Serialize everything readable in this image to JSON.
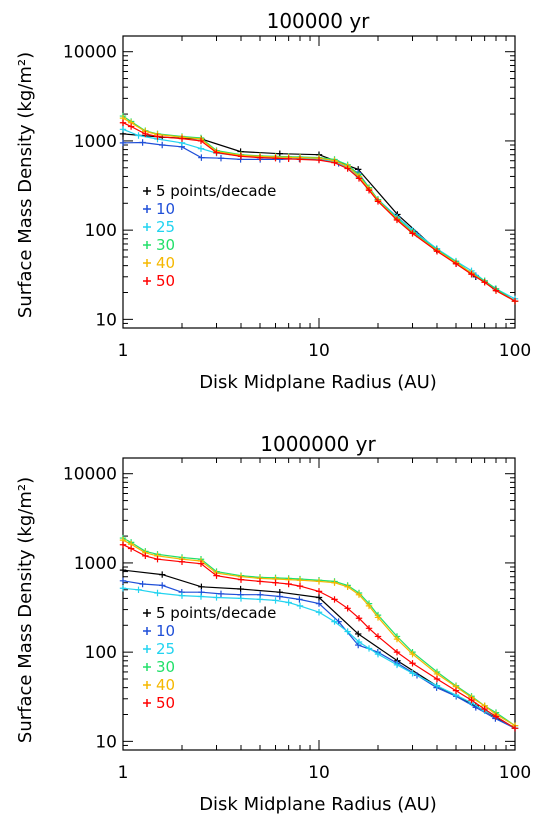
{
  "chart_data": [
    {
      "type": "line",
      "title": "100000 yr",
      "xlabel": "Disk Midplane Radius (AU)",
      "ylabel": "Surface Mass Density (kg/m²)",
      "xscale": "log",
      "yscale": "log",
      "xlim": [
        1,
        100
      ],
      "ylim": [
        8,
        15000
      ],
      "xticks": [
        "1",
        "10",
        "100"
      ],
      "yticks": [
        "10",
        "100",
        "1000",
        "10000"
      ],
      "legend_position": "left-middle",
      "series": [
        {
          "name": "5 points/decade",
          "color": "#000000",
          "x": [
            1,
            1.585,
            2.512,
            3.981,
            6.31,
            10,
            15.85,
            25.12,
            39.81,
            63.1,
            100
          ],
          "y": [
            1200,
            1100,
            1050,
            760,
            720,
            700,
            480,
            150,
            60,
            30,
            16
          ]
        },
        {
          "name": "10",
          "color": "#1f4fd8",
          "x": [
            1,
            1.259,
            1.585,
            1.995,
            2.512,
            3.162,
            3.981,
            5.012,
            6.31,
            7.943,
            10,
            12.59,
            15.85,
            19.95,
            25.12,
            31.62,
            39.81,
            50.12,
            63.1,
            79.43,
            100
          ],
          "y": [
            950,
            960,
            900,
            860,
            650,
            640,
            620,
            620,
            620,
            630,
            620,
            560,
            440,
            220,
            140,
            90,
            62,
            42,
            31,
            22,
            16
          ]
        },
        {
          "name": "25",
          "color": "#22d3f0",
          "x": [
            1,
            1.2,
            1.5,
            2,
            2.5,
            3,
            4,
            5,
            6,
            7,
            8,
            10,
            12,
            14,
            16,
            18,
            20,
            25,
            30,
            40,
            50,
            60,
            70,
            80,
            100
          ],
          "y": [
            1350,
            1150,
            1050,
            950,
            820,
            730,
            680,
            660,
            650,
            650,
            645,
            630,
            590,
            500,
            390,
            290,
            220,
            140,
            100,
            62,
            45,
            35,
            27,
            22,
            17
          ]
        },
        {
          "name": "30",
          "color": "#22e06a",
          "x": [
            1,
            1.1,
            1.3,
            1.5,
            2,
            2.5,
            3,
            4,
            5,
            6,
            7,
            8,
            10,
            12,
            14,
            16,
            18,
            20,
            25,
            30,
            40,
            50,
            60,
            70,
            80,
            100
          ],
          "y": [
            1900,
            1650,
            1300,
            1200,
            1120,
            1080,
            780,
            700,
            680,
            670,
            665,
            660,
            650,
            620,
            540,
            420,
            300,
            220,
            135,
            95,
            60,
            44,
            33,
            27,
            22,
            16
          ]
        },
        {
          "name": "40",
          "color": "#f5b800",
          "x": [
            1,
            1.1,
            1.3,
            1.5,
            2,
            2.5,
            3,
            4,
            5,
            6,
            7,
            8,
            10,
            12,
            14,
            16,
            18,
            20,
            25,
            30,
            40,
            50,
            60,
            70,
            80,
            100
          ],
          "y": [
            1800,
            1600,
            1280,
            1180,
            1100,
            1050,
            760,
            690,
            670,
            660,
            655,
            650,
            640,
            600,
            520,
            400,
            290,
            215,
            132,
            93,
            59,
            43,
            33,
            26,
            21,
            16
          ]
        },
        {
          "name": "50",
          "color": "#ff0000",
          "x": [
            1,
            1.1,
            1.3,
            1.5,
            2,
            2.5,
            3,
            4,
            5,
            6,
            7,
            8,
            10,
            12,
            14,
            16,
            18,
            20,
            25,
            30,
            40,
            50,
            60,
            70,
            80,
            100
          ],
          "y": [
            1600,
            1450,
            1200,
            1120,
            1060,
            1000,
            740,
            670,
            650,
            640,
            630,
            620,
            610,
            570,
            490,
            380,
            280,
            210,
            130,
            92,
            58,
            42,
            32,
            26,
            21,
            16
          ]
        }
      ]
    },
    {
      "type": "line",
      "title": "1000000 yr",
      "xlabel": "Disk Midplane Radius (AU)",
      "ylabel": "Surface Mass Density (kg/m²)",
      "xscale": "log",
      "yscale": "log",
      "xlim": [
        1,
        100
      ],
      "ylim": [
        8,
        15000
      ],
      "xticks": [
        "1",
        "10",
        "100"
      ],
      "yticks": [
        "10",
        "100",
        "1000",
        "10000"
      ],
      "legend_position": "left-middle",
      "series": [
        {
          "name": "5 points/decade",
          "color": "#000000",
          "x": [
            1,
            1.585,
            2.512,
            3.981,
            6.31,
            10,
            15.85,
            25.12,
            39.81,
            63.1,
            100
          ],
          "y": [
            830,
            740,
            540,
            510,
            470,
            410,
            160,
            80,
            42,
            25,
            14
          ]
        },
        {
          "name": "10",
          "color": "#1f4fd8",
          "x": [
            1,
            1.259,
            1.585,
            1.995,
            2.512,
            3.162,
            3.981,
            5.012,
            6.31,
            7.943,
            10,
            12.59,
            15.85,
            19.95,
            25.12,
            31.62,
            39.81,
            50.12,
            63.1,
            79.43,
            100
          ],
          "y": [
            630,
            580,
            560,
            470,
            470,
            450,
            440,
            440,
            420,
            390,
            350,
            220,
            120,
            100,
            75,
            55,
            40,
            32,
            24,
            18,
            14
          ]
        },
        {
          "name": "25",
          "color": "#22d3f0",
          "x": [
            1,
            1.2,
            1.5,
            2,
            2.5,
            3,
            4,
            5,
            6,
            7,
            8,
            10,
            12,
            14,
            16,
            18,
            20,
            25,
            30,
            40,
            50,
            60,
            70,
            80,
            100
          ],
          "y": [
            520,
            500,
            460,
            430,
            420,
            410,
            400,
            390,
            380,
            360,
            330,
            280,
            220,
            170,
            130,
            110,
            95,
            72,
            58,
            42,
            33,
            27,
            22,
            19,
            14
          ]
        },
        {
          "name": "30",
          "color": "#22e06a",
          "x": [
            1,
            1.1,
            1.3,
            1.5,
            2,
            2.5,
            3,
            4,
            5,
            6,
            7,
            8,
            10,
            12,
            14,
            16,
            18,
            20,
            25,
            30,
            40,
            50,
            60,
            70,
            80,
            100
          ],
          "y": [
            1900,
            1700,
            1350,
            1250,
            1150,
            1100,
            800,
            720,
            690,
            680,
            670,
            660,
            640,
            620,
            560,
            460,
            350,
            260,
            150,
            100,
            60,
            42,
            32,
            25,
            21,
            15
          ]
        },
        {
          "name": "40",
          "color": "#f5b800",
          "x": [
            1,
            1.1,
            1.3,
            1.5,
            2,
            2.5,
            3,
            4,
            5,
            6,
            7,
            8,
            10,
            12,
            14,
            16,
            18,
            20,
            25,
            30,
            40,
            50,
            60,
            70,
            80,
            100
          ],
          "y": [
            1800,
            1620,
            1300,
            1200,
            1100,
            1050,
            770,
            700,
            670,
            660,
            650,
            640,
            620,
            600,
            540,
            440,
            330,
            245,
            140,
            95,
            57,
            41,
            31,
            25,
            20,
            15
          ]
        },
        {
          "name": "50",
          "color": "#ff0000",
          "x": [
            1,
            1.1,
            1.3,
            1.5,
            2,
            2.5,
            3,
            4,
            5,
            6,
            7,
            8,
            10,
            12,
            14,
            16,
            18,
            20,
            25,
            30,
            40,
            50,
            60,
            70,
            80,
            100
          ],
          "y": [
            1600,
            1450,
            1200,
            1100,
            1030,
            980,
            720,
            650,
            620,
            600,
            580,
            550,
            480,
            390,
            310,
            240,
            185,
            150,
            100,
            75,
            50,
            37,
            29,
            23,
            19,
            14
          ]
        }
      ]
    }
  ]
}
